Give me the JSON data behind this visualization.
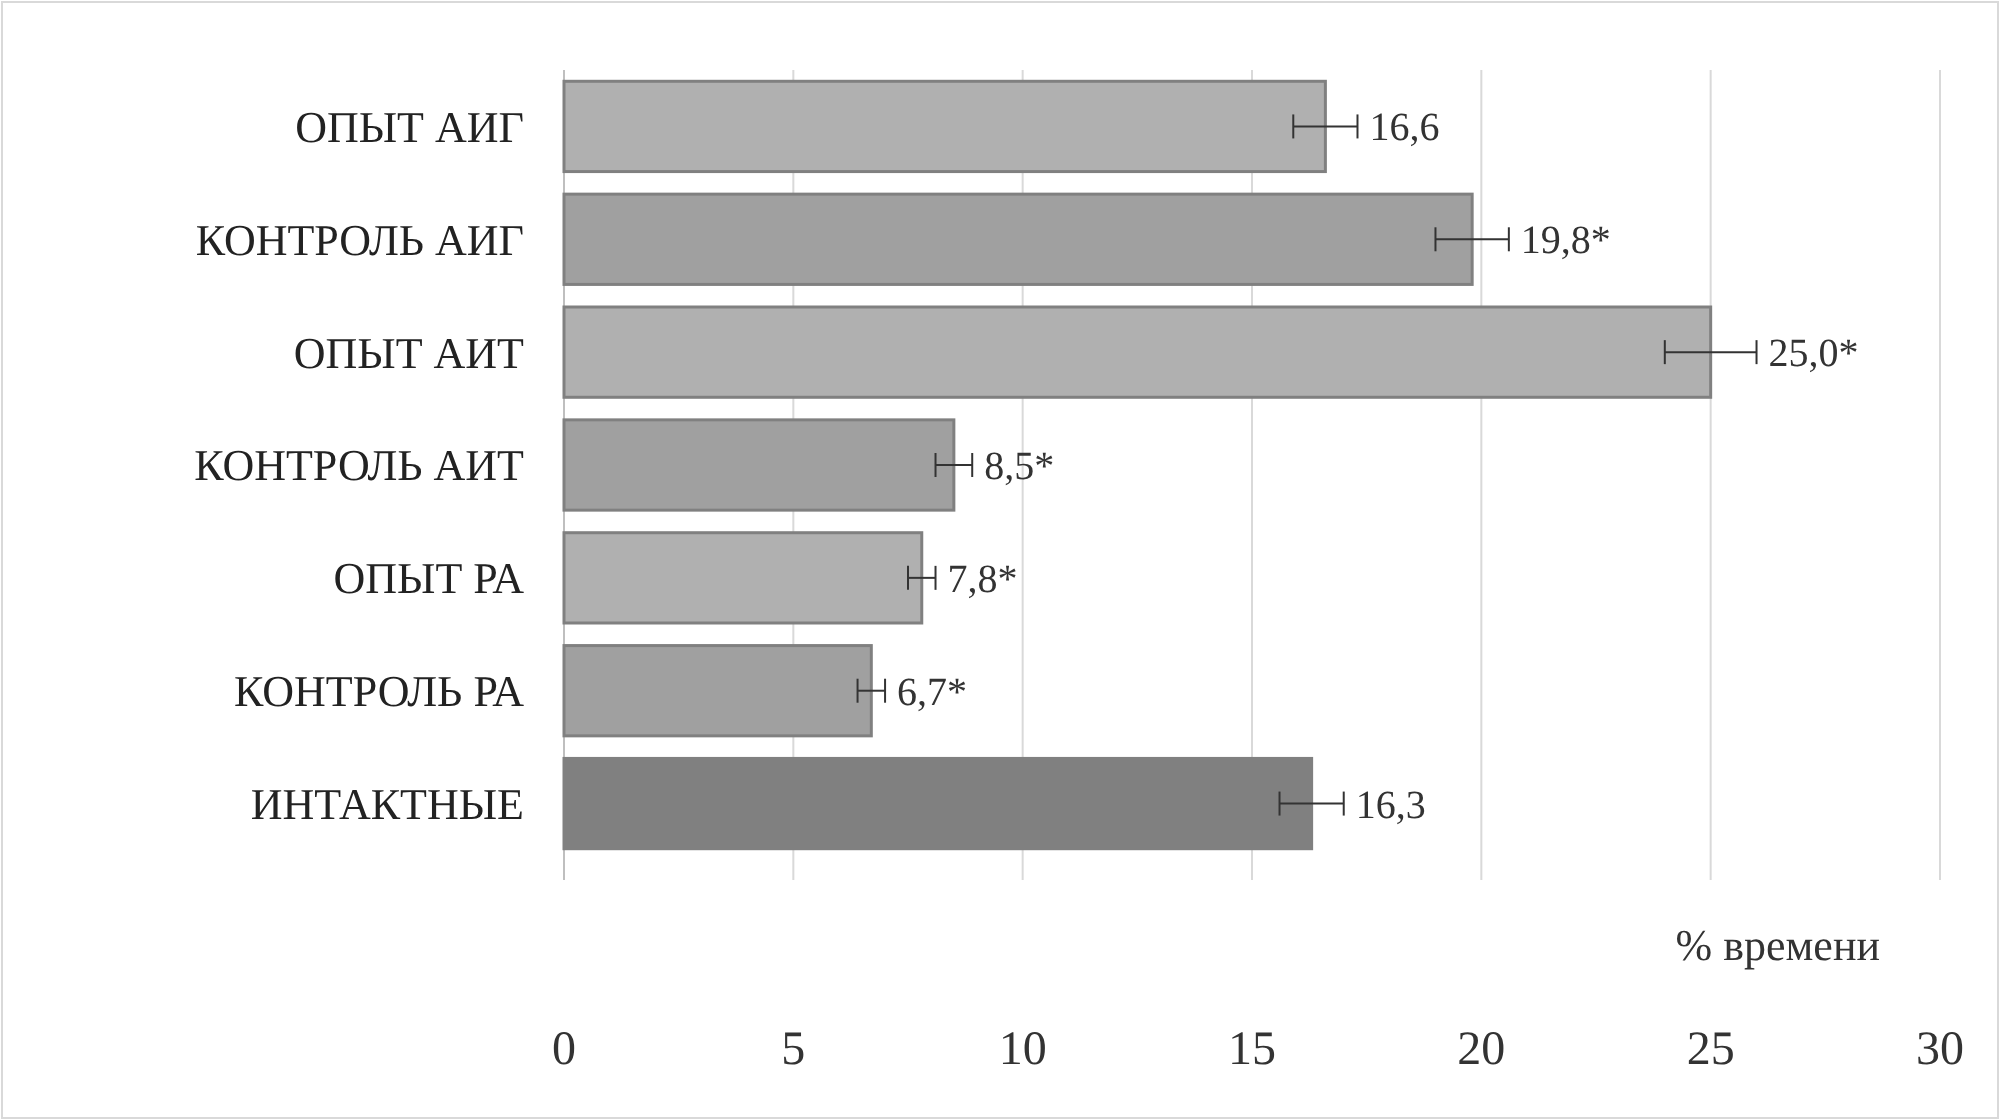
{
  "chart_data": {
    "type": "bar",
    "orientation": "horizontal",
    "xlabel": "% времени",
    "categories": [
      "ОПЫТ АИГ",
      "КОНТРОЛЬ АИГ",
      "ОПЫТ АИТ",
      "КОНТРОЛЬ АИТ",
      "ОПЫТ РА",
      "КОНТРОЛЬ РА",
      "ИНТАКТНЫЕ"
    ],
    "values": [
      16.6,
      19.8,
      25.0,
      8.5,
      7.8,
      6.7,
      16.3
    ],
    "errors": [
      0.7,
      0.8,
      1.0,
      0.4,
      0.3,
      0.3,
      0.7
    ],
    "value_labels": [
      "16,6",
      "19,8*",
      "25,0*",
      "8,5*",
      "7,8*",
      "6,7*",
      "16,3"
    ],
    "colors": [
      "#b0b0b0",
      "#a0a0a0",
      "#b0b0b0",
      "#a0a0a0",
      "#b0b0b0",
      "#a0a0a0",
      "#808080"
    ],
    "xlim": [
      0,
      30
    ],
    "xticks": [
      0,
      5,
      10,
      15,
      20,
      25,
      30
    ],
    "grid": "x"
  }
}
